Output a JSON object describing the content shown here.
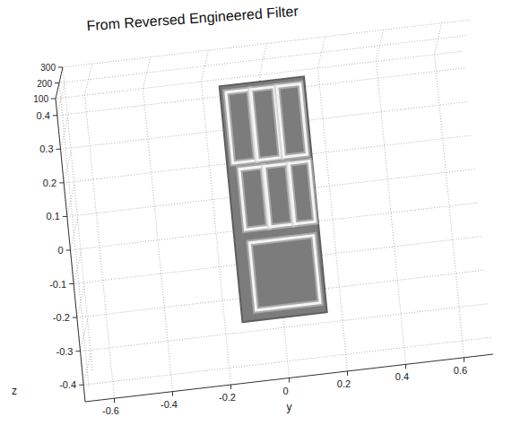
{
  "chart_data": {
    "type": "surface",
    "title": "From Reversed Engineered Filter",
    "ylabel": "y",
    "zlabel": "z",
    "xlim": [
      100,
      300
    ],
    "xticks": [
      100,
      200,
      300
    ],
    "ylim": [
      -0.7,
      0.7
    ],
    "yticks": [
      -0.6,
      -0.4,
      -0.2,
      0,
      0.2,
      0.4,
      0.6
    ],
    "zlim": [
      -0.45,
      0.45
    ],
    "zticks": [
      -0.4,
      -0.3,
      -0.2,
      -0.1,
      0,
      0.1,
      0.2,
      0.3,
      0.4
    ],
    "grid": true,
    "board": {
      "y": [
        -0.14,
        0.15
      ],
      "z": [
        -0.27,
        0.43
      ]
    },
    "outlines": [
      {
        "y": [
          -0.12,
          -0.04
        ],
        "z": [
          0.2,
          0.41
        ]
      },
      {
        "y": [
          -0.035,
          0.045
        ],
        "z": [
          0.2,
          0.41
        ]
      },
      {
        "y": [
          0.055,
          0.135
        ],
        "z": [
          0.2,
          0.41
        ]
      },
      {
        "y": [
          -0.1,
          -0.02
        ],
        "z": [
          0.0,
          0.18
        ]
      },
      {
        "y": [
          -0.015,
          0.065
        ],
        "z": [
          0.0,
          0.18
        ]
      },
      {
        "y": [
          0.07,
          0.14
        ],
        "z": [
          0.0,
          0.18
        ]
      },
      {
        "y": [
          -0.09,
          0.13
        ],
        "z": [
          -0.24,
          -0.04
        ]
      }
    ]
  }
}
